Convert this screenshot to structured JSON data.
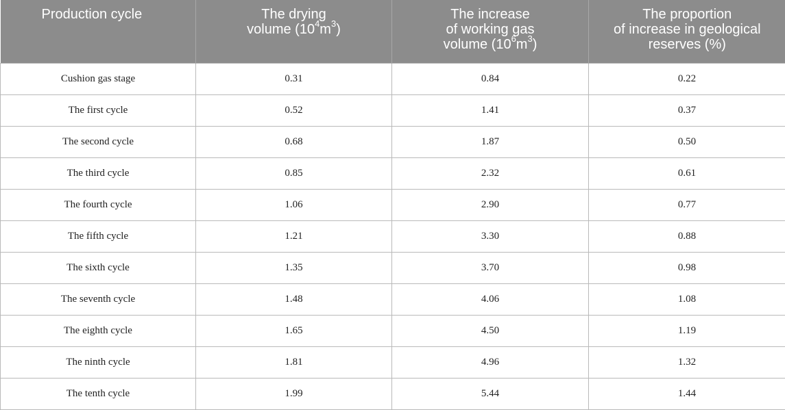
{
  "table": {
    "headers": {
      "production_cycle": "Production cycle",
      "drying_volume": {
        "line1": "The drying",
        "line2_prefix": "volume (10",
        "line2_sup1": "4",
        "line2_mid": "m",
        "line2_sup2": "3",
        "line2_suffix": ")"
      },
      "working_gas": {
        "line1": "The increase",
        "line2": "of working gas",
        "line3_prefix": "volume (10",
        "line3_sup1": "6",
        "line3_mid": "m",
        "line3_sup2": "3",
        "line3_suffix": ")"
      },
      "proportion": {
        "line1": "The proportion",
        "line2": "of increase in geological",
        "line3": "reserves (%)"
      }
    },
    "rows": [
      {
        "cycle": "Cushion gas stage",
        "drying": "0.31",
        "working_gas": "0.84",
        "proportion": "0.22"
      },
      {
        "cycle": "The first cycle",
        "drying": "0.52",
        "working_gas": "1.41",
        "proportion": "0.37"
      },
      {
        "cycle": "The second cycle",
        "drying": "0.68",
        "working_gas": "1.87",
        "proportion": "0.50"
      },
      {
        "cycle": "The third cycle",
        "drying": "0.85",
        "working_gas": "2.32",
        "proportion": "0.61"
      },
      {
        "cycle": "The fourth cycle",
        "drying": "1.06",
        "working_gas": "2.90",
        "proportion": "0.77"
      },
      {
        "cycle": "The fifth cycle",
        "drying": "1.21",
        "working_gas": "3.30",
        "proportion": "0.88"
      },
      {
        "cycle": "The sixth cycle",
        "drying": "1.35",
        "working_gas": "3.70",
        "proportion": "0.98"
      },
      {
        "cycle": "The seventh cycle",
        "drying": "1.48",
        "working_gas": "4.06",
        "proportion": "1.08"
      },
      {
        "cycle": "The eighth cycle",
        "drying": "1.65",
        "working_gas": "4.50",
        "proportion": "1.19"
      },
      {
        "cycle": "The ninth cycle",
        "drying": "1.81",
        "working_gas": "4.96",
        "proportion": "1.32"
      },
      {
        "cycle": "The tenth cycle",
        "drying": "1.99",
        "working_gas": "5.44",
        "proportion": "1.44"
      }
    ]
  },
  "colors": {
    "header_background": "#8c8c8c",
    "header_text": "#ffffff",
    "border": "#b9b9b9",
    "body_text": "#222222"
  }
}
